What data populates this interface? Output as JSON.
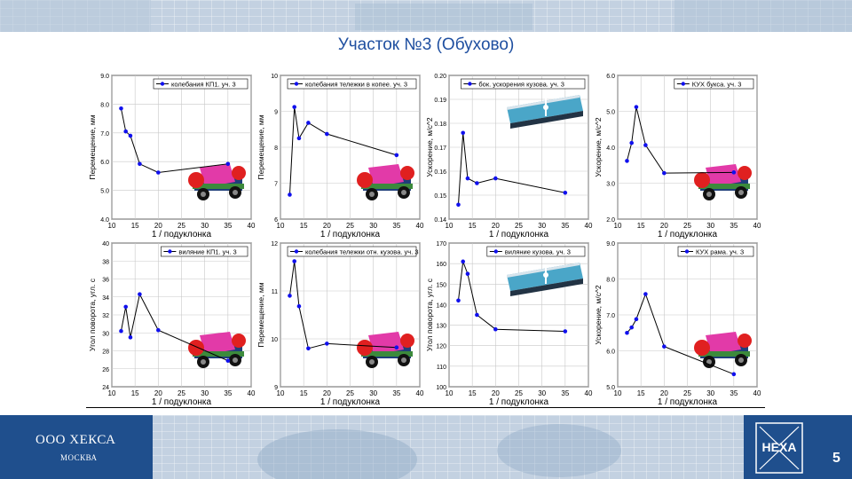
{
  "title": "Участок №3 (Обухово)",
  "footer": {
    "company": "ООО ХЕКСА",
    "city": "МОСКВА",
    "logo_text": "HEXA",
    "page_number": "5"
  },
  "colors": {
    "title": "#1f4fa0",
    "series": "#1010ee",
    "brand": "#1f4f8d"
  },
  "chart_data": [
    {
      "type": "line",
      "legend": "колебания КП1. уч. 3",
      "xlabel": "1 / подуклонка",
      "ylabel": "Перемещение, мм",
      "xlim": [
        10,
        40
      ],
      "ylim": [
        4,
        9
      ],
      "xticks": [
        "10",
        "15",
        "20",
        "25",
        "30",
        "35",
        "40"
      ],
      "yticks": [
        "4.0",
        "5.0",
        "6.0",
        "7.0",
        "8.0",
        "9.0"
      ],
      "x": [
        12,
        13,
        14,
        16,
        20,
        35
      ],
      "y": [
        7.85,
        7.05,
        6.9,
        5.92,
        5.62,
        5.92
      ],
      "inset": "bogie"
    },
    {
      "type": "line",
      "legend": "колебания тележки в копее. уч. 3",
      "xlabel": "1 / подуклонка",
      "ylabel": "Перемещение, мм",
      "xlim": [
        10,
        40
      ],
      "ylim": [
        6,
        10
      ],
      "xticks": [
        "10",
        "15",
        "20",
        "25",
        "30",
        "35",
        "40"
      ],
      "yticks": [
        "6",
        "7",
        "8",
        "9",
        "10"
      ],
      "x": [
        12,
        13,
        14,
        16,
        20,
        35
      ],
      "y": [
        6.68,
        9.12,
        8.25,
        8.68,
        8.37,
        7.78
      ],
      "inset": "bogie"
    },
    {
      "type": "line",
      "legend": "бок. ускорения кузова. уч. 3",
      "xlabel": "1 / подуклонка",
      "ylabel": "Ускорение, м/с^2",
      "xlim": [
        10,
        40
      ],
      "ylim": [
        0.14,
        0.2
      ],
      "xticks": [
        "10",
        "15",
        "20",
        "25",
        "30",
        "35",
        "40"
      ],
      "yticks": [
        "0.14",
        "0.15",
        "0.16",
        "0.17",
        "0.18",
        "0.19",
        "0.20"
      ],
      "x": [
        12,
        13,
        14,
        16,
        20,
        35
      ],
      "y": [
        0.146,
        0.176,
        0.157,
        0.155,
        0.157,
        0.151
      ],
      "inset": "car"
    },
    {
      "type": "line",
      "legend": "КУХ букса. уч. 3",
      "xlabel": "1 / подуклонка",
      "ylabel": "Ускорение, м/с^2",
      "xlim": [
        10,
        40
      ],
      "ylim": [
        2,
        6
      ],
      "xticks": [
        "10",
        "15",
        "20",
        "25",
        "30",
        "35",
        "40"
      ],
      "yticks": [
        "2.0",
        "3.0",
        "4.0",
        "5.0",
        "6.0"
      ],
      "x": [
        12,
        13,
        14,
        16,
        20,
        35
      ],
      "y": [
        3.62,
        4.12,
        5.12,
        4.06,
        3.28,
        3.3
      ],
      "inset": "bogie"
    },
    {
      "type": "line",
      "legend": "виляние КП1. уч. 3",
      "xlabel": "1 / подуклонка",
      "ylabel": "Угол поворота, угл. с",
      "xlim": [
        10,
        40
      ],
      "ylim": [
        24,
        40
      ],
      "xticks": [
        "10",
        "15",
        "20",
        "25",
        "30",
        "35",
        "40"
      ],
      "yticks": [
        "24",
        "26",
        "28",
        "30",
        "32",
        "34",
        "36",
        "38",
        "40"
      ],
      "x": [
        12,
        13,
        14,
        16,
        20,
        35
      ],
      "y": [
        30.2,
        32.9,
        29.5,
        34.3,
        30.3,
        26.9
      ],
      "inset": "bogie"
    },
    {
      "type": "line",
      "legend": "колебания тележки отн. кузова. уч. 3",
      "xlabel": "1 / подуклонка",
      "ylabel": "Перемещение, мм",
      "xlim": [
        10,
        40
      ],
      "ylim": [
        9,
        12
      ],
      "xticks": [
        "10",
        "15",
        "20",
        "25",
        "30",
        "35",
        "40"
      ],
      "yticks": [
        "9",
        "10",
        "11",
        "12"
      ],
      "x": [
        12,
        13,
        14,
        16,
        20,
        35
      ],
      "y": [
        10.9,
        11.62,
        10.68,
        9.8,
        9.9,
        9.82
      ],
      "inset": "bogie"
    },
    {
      "type": "line",
      "legend": "виляние кузова. уч. 3",
      "xlabel": "1 / подуклонка",
      "ylabel": "Угол поворота, угл. с",
      "xlim": [
        10,
        40
      ],
      "ylim": [
        100,
        170
      ],
      "xticks": [
        "10",
        "15",
        "20",
        "25",
        "30",
        "35",
        "40"
      ],
      "yticks": [
        "100",
        "110",
        "120",
        "130",
        "140",
        "150",
        "160",
        "170"
      ],
      "x": [
        12,
        13,
        14,
        16,
        20,
        35
      ],
      "y": [
        142,
        161,
        155,
        135,
        128,
        127
      ],
      "inset": "car"
    },
    {
      "type": "line",
      "legend": "КУХ рама. уч. 3",
      "xlabel": "1 / подуклонка",
      "ylabel": "Ускорение, м/с^2",
      "xlim": [
        10,
        40
      ],
      "ylim": [
        5,
        9
      ],
      "xticks": [
        "10",
        "15",
        "20",
        "25",
        "30",
        "35",
        "40"
      ],
      "yticks": [
        "5.0",
        "6.0",
        "7.0",
        "8.0",
        "9.0"
      ],
      "x": [
        12,
        13,
        14,
        16,
        20,
        35
      ],
      "y": [
        6.5,
        6.65,
        6.88,
        7.58,
        6.12,
        5.35
      ],
      "inset": "bogie"
    }
  ]
}
